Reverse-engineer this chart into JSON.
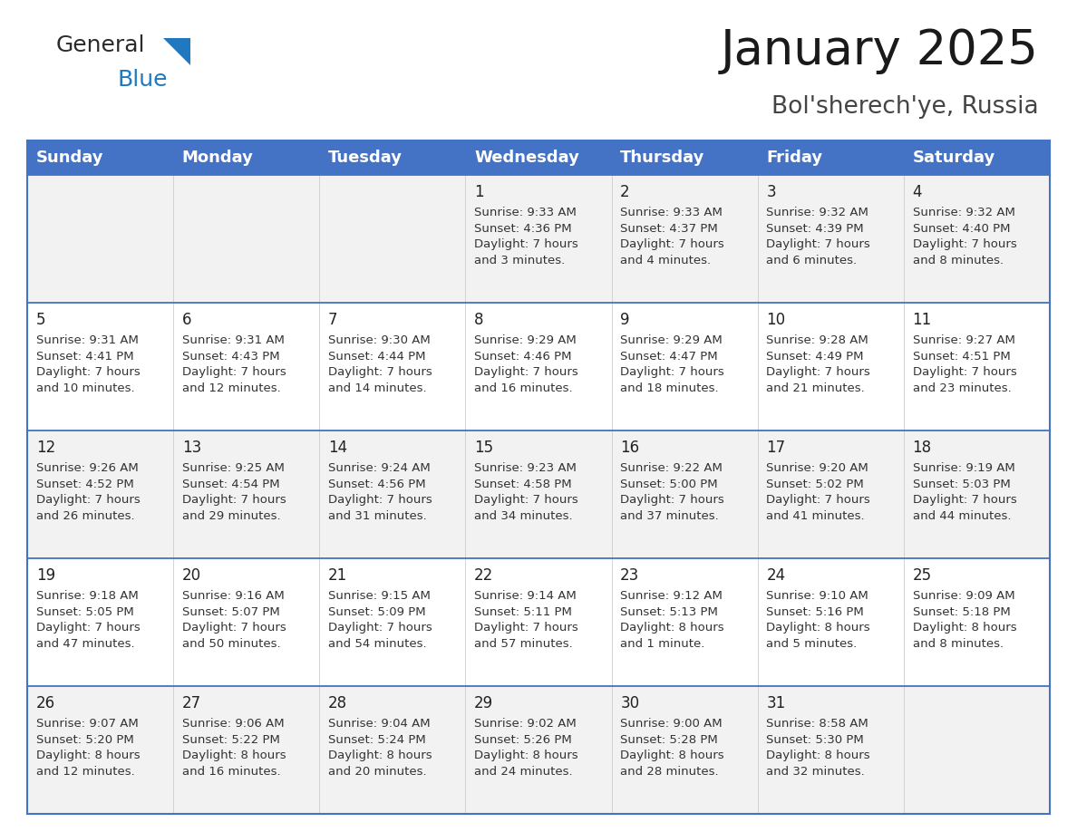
{
  "title": "January 2025",
  "subtitle": "Bol'sherech'ye, Russia",
  "header_color": "#4472C4",
  "header_text_color": "#FFFFFF",
  "row_colors": [
    "#F2F2F2",
    "#FFFFFF"
  ],
  "border_color": "#4472C4",
  "text_color": "#333333",
  "days_of_week": [
    "Sunday",
    "Monday",
    "Tuesday",
    "Wednesday",
    "Thursday",
    "Friday",
    "Saturday"
  ],
  "calendar_data": [
    [
      {
        "day": "",
        "info": ""
      },
      {
        "day": "",
        "info": ""
      },
      {
        "day": "",
        "info": ""
      },
      {
        "day": "1",
        "info": "Sunrise: 9:33 AM\nSunset: 4:36 PM\nDaylight: 7 hours\nand 3 minutes."
      },
      {
        "day": "2",
        "info": "Sunrise: 9:33 AM\nSunset: 4:37 PM\nDaylight: 7 hours\nand 4 minutes."
      },
      {
        "day": "3",
        "info": "Sunrise: 9:32 AM\nSunset: 4:39 PM\nDaylight: 7 hours\nand 6 minutes."
      },
      {
        "day": "4",
        "info": "Sunrise: 9:32 AM\nSunset: 4:40 PM\nDaylight: 7 hours\nand 8 minutes."
      }
    ],
    [
      {
        "day": "5",
        "info": "Sunrise: 9:31 AM\nSunset: 4:41 PM\nDaylight: 7 hours\nand 10 minutes."
      },
      {
        "day": "6",
        "info": "Sunrise: 9:31 AM\nSunset: 4:43 PM\nDaylight: 7 hours\nand 12 minutes."
      },
      {
        "day": "7",
        "info": "Sunrise: 9:30 AM\nSunset: 4:44 PM\nDaylight: 7 hours\nand 14 minutes."
      },
      {
        "day": "8",
        "info": "Sunrise: 9:29 AM\nSunset: 4:46 PM\nDaylight: 7 hours\nand 16 minutes."
      },
      {
        "day": "9",
        "info": "Sunrise: 9:29 AM\nSunset: 4:47 PM\nDaylight: 7 hours\nand 18 minutes."
      },
      {
        "day": "10",
        "info": "Sunrise: 9:28 AM\nSunset: 4:49 PM\nDaylight: 7 hours\nand 21 minutes."
      },
      {
        "day": "11",
        "info": "Sunrise: 9:27 AM\nSunset: 4:51 PM\nDaylight: 7 hours\nand 23 minutes."
      }
    ],
    [
      {
        "day": "12",
        "info": "Sunrise: 9:26 AM\nSunset: 4:52 PM\nDaylight: 7 hours\nand 26 minutes."
      },
      {
        "day": "13",
        "info": "Sunrise: 9:25 AM\nSunset: 4:54 PM\nDaylight: 7 hours\nand 29 minutes."
      },
      {
        "day": "14",
        "info": "Sunrise: 9:24 AM\nSunset: 4:56 PM\nDaylight: 7 hours\nand 31 minutes."
      },
      {
        "day": "15",
        "info": "Sunrise: 9:23 AM\nSunset: 4:58 PM\nDaylight: 7 hours\nand 34 minutes."
      },
      {
        "day": "16",
        "info": "Sunrise: 9:22 AM\nSunset: 5:00 PM\nDaylight: 7 hours\nand 37 minutes."
      },
      {
        "day": "17",
        "info": "Sunrise: 9:20 AM\nSunset: 5:02 PM\nDaylight: 7 hours\nand 41 minutes."
      },
      {
        "day": "18",
        "info": "Sunrise: 9:19 AM\nSunset: 5:03 PM\nDaylight: 7 hours\nand 44 minutes."
      }
    ],
    [
      {
        "day": "19",
        "info": "Sunrise: 9:18 AM\nSunset: 5:05 PM\nDaylight: 7 hours\nand 47 minutes."
      },
      {
        "day": "20",
        "info": "Sunrise: 9:16 AM\nSunset: 5:07 PM\nDaylight: 7 hours\nand 50 minutes."
      },
      {
        "day": "21",
        "info": "Sunrise: 9:15 AM\nSunset: 5:09 PM\nDaylight: 7 hours\nand 54 minutes."
      },
      {
        "day": "22",
        "info": "Sunrise: 9:14 AM\nSunset: 5:11 PM\nDaylight: 7 hours\nand 57 minutes."
      },
      {
        "day": "23",
        "info": "Sunrise: 9:12 AM\nSunset: 5:13 PM\nDaylight: 8 hours\nand 1 minute."
      },
      {
        "day": "24",
        "info": "Sunrise: 9:10 AM\nSunset: 5:16 PM\nDaylight: 8 hours\nand 5 minutes."
      },
      {
        "day": "25",
        "info": "Sunrise: 9:09 AM\nSunset: 5:18 PM\nDaylight: 8 hours\nand 8 minutes."
      }
    ],
    [
      {
        "day": "26",
        "info": "Sunrise: 9:07 AM\nSunset: 5:20 PM\nDaylight: 8 hours\nand 12 minutes."
      },
      {
        "day": "27",
        "info": "Sunrise: 9:06 AM\nSunset: 5:22 PM\nDaylight: 8 hours\nand 16 minutes."
      },
      {
        "day": "28",
        "info": "Sunrise: 9:04 AM\nSunset: 5:24 PM\nDaylight: 8 hours\nand 20 minutes."
      },
      {
        "day": "29",
        "info": "Sunrise: 9:02 AM\nSunset: 5:26 PM\nDaylight: 8 hours\nand 24 minutes."
      },
      {
        "day": "30",
        "info": "Sunrise: 9:00 AM\nSunset: 5:28 PM\nDaylight: 8 hours\nand 28 minutes."
      },
      {
        "day": "31",
        "info": "Sunrise: 8:58 AM\nSunset: 5:30 PM\nDaylight: 8 hours\nand 32 minutes."
      },
      {
        "day": "",
        "info": ""
      }
    ]
  ],
  "logo_general_color": "#2B2B2B",
  "logo_blue_color": "#2079C0",
  "title_fontsize": 38,
  "subtitle_fontsize": 19,
  "header_fontsize": 13,
  "day_num_fontsize": 12,
  "info_fontsize": 9.5
}
